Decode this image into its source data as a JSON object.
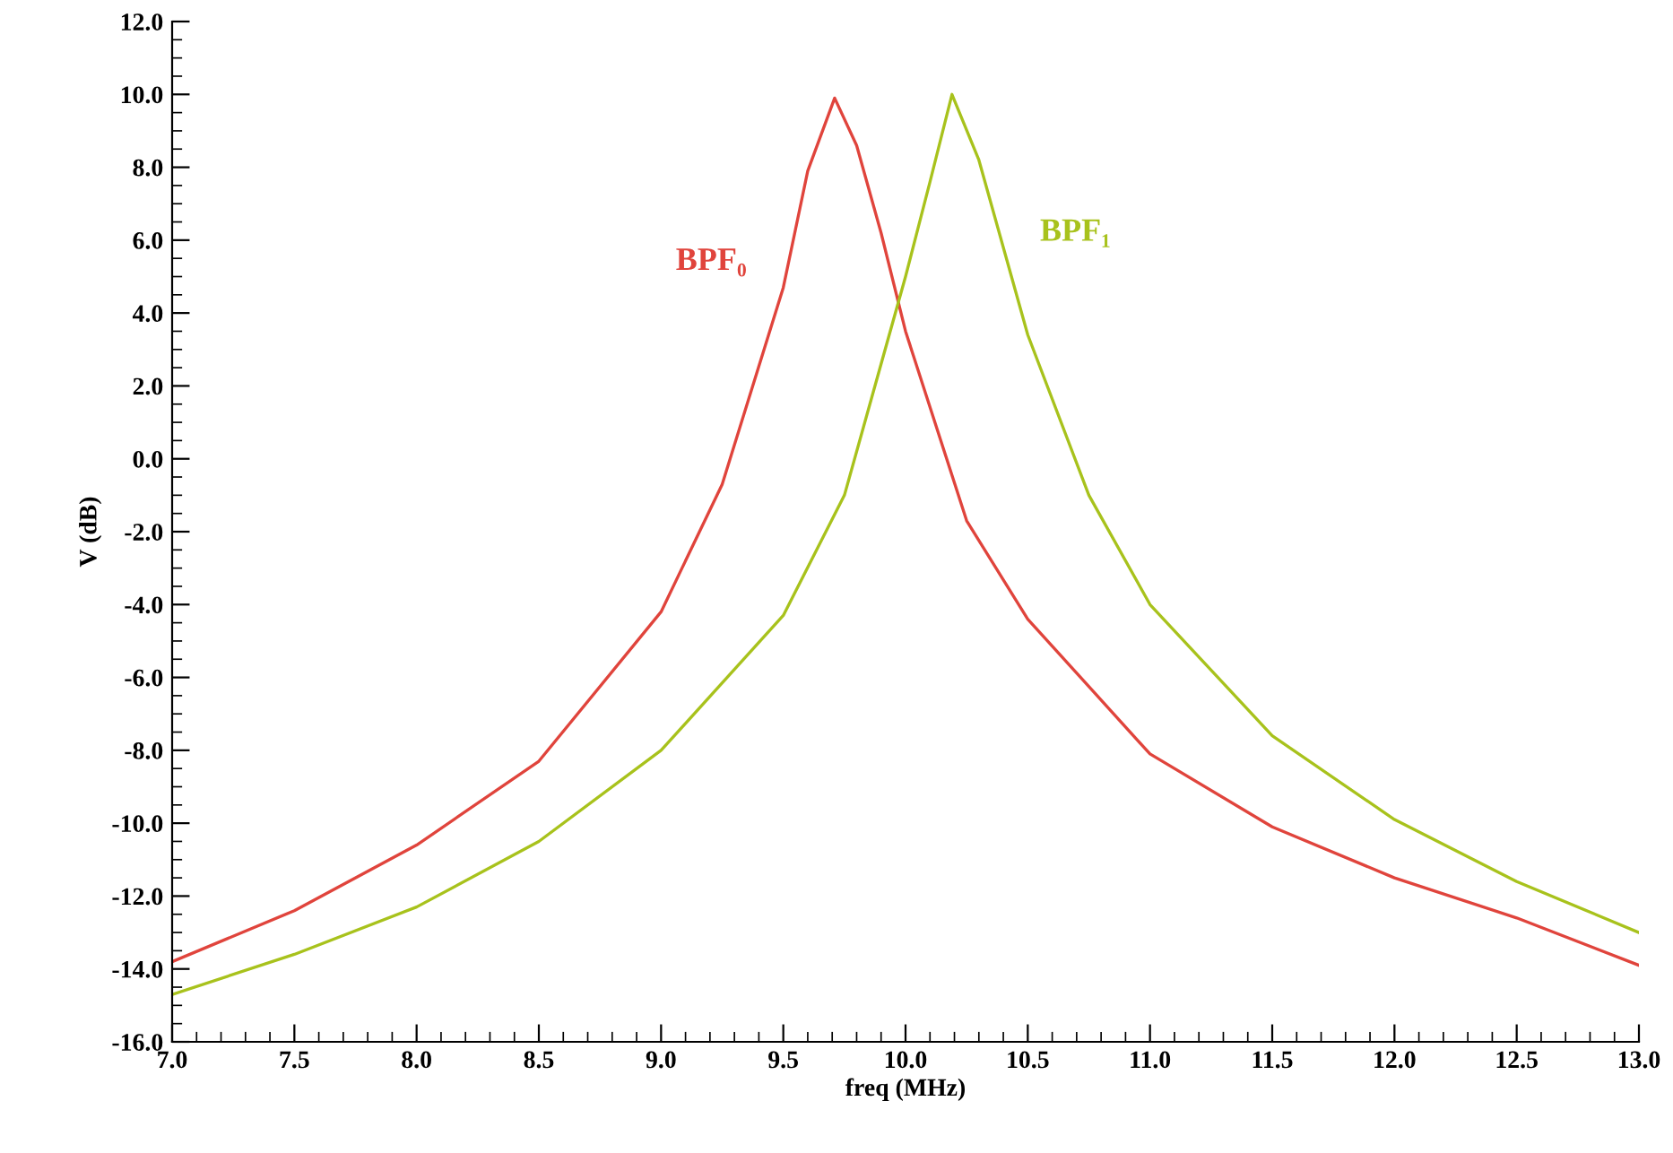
{
  "chart_data": {
    "type": "line",
    "xlabel": "freq (MHz)",
    "ylabel": "V (dB)",
    "xlim": [
      7.0,
      13.0
    ],
    "ylim": [
      -16.0,
      12.0
    ],
    "xticks": [
      {
        "value": 7,
        "label": "7.0"
      },
      {
        "value": 7.5,
        "label": "7.5"
      },
      {
        "value": 8,
        "label": "8.0"
      },
      {
        "value": 8.5,
        "label": "8.5"
      },
      {
        "value": 9,
        "label": "9.0"
      },
      {
        "value": 9.5,
        "label": "9.5"
      },
      {
        "value": 10,
        "label": "10.0"
      },
      {
        "value": 10.5,
        "label": "10.5"
      },
      {
        "value": 11,
        "label": "11.0"
      },
      {
        "value": 11.5,
        "label": "11.5"
      },
      {
        "value": 12,
        "label": "12.0"
      },
      {
        "value": 12.5,
        "label": "12.5"
      },
      {
        "value": 13,
        "label": "13.0"
      }
    ],
    "yticks": [
      {
        "value": -16,
        "label": "-16.0"
      },
      {
        "value": -14,
        "label": "-14.0"
      },
      {
        "value": -12,
        "label": "-12.0"
      },
      {
        "value": -10,
        "label": "-10.0"
      },
      {
        "value": -8,
        "label": "-8.0"
      },
      {
        "value": -6,
        "label": "-6.0"
      },
      {
        "value": -4,
        "label": "-4.0"
      },
      {
        "value": -2,
        "label": "-2.0"
      },
      {
        "value": 0,
        "label": "0.0"
      },
      {
        "value": 2,
        "label": "2.0"
      },
      {
        "value": 4,
        "label": "4.0"
      },
      {
        "value": 6,
        "label": "6.0"
      },
      {
        "value": 8,
        "label": "8.0"
      },
      {
        "value": 10,
        "label": "10.0"
      },
      {
        "value": 12,
        "label": "12.0"
      }
    ],
    "grid": false,
    "legend": false,
    "marker": "none",
    "line_style": "solid",
    "series": [
      {
        "name": "BPF₀",
        "color": "#e0443c",
        "x": [
          7.0,
          7.5,
          8.0,
          8.5,
          9.0,
          9.25,
          9.5,
          9.6,
          9.71,
          9.8,
          9.9,
          10.0,
          10.25,
          10.5,
          11.0,
          11.5,
          12.0,
          12.5,
          13.0
        ],
        "values": [
          -13.8,
          -12.4,
          -10.6,
          -8.3,
          -4.2,
          -0.7,
          4.7,
          7.9,
          9.9,
          8.6,
          6.2,
          3.5,
          -1.7,
          -4.4,
          -8.1,
          -10.1,
          -11.5,
          -12.6,
          -13.9
        ]
      },
      {
        "name": "BPF₁",
        "color": "#a8c21c",
        "x": [
          7.0,
          7.5,
          8.0,
          8.5,
          9.0,
          9.5,
          9.75,
          9.9,
          10.0,
          10.1,
          10.19,
          10.3,
          10.4,
          10.5,
          10.75,
          11.0,
          11.5,
          12.0,
          12.5,
          13.0
        ],
        "values": [
          -14.7,
          -13.6,
          -12.3,
          -10.5,
          -8.0,
          -4.3,
          -1.0,
          2.6,
          5.0,
          7.6,
          10.0,
          8.2,
          5.8,
          3.4,
          -1.0,
          -4.0,
          -7.6,
          -9.9,
          -11.6,
          -13.0
        ]
      }
    ]
  }
}
